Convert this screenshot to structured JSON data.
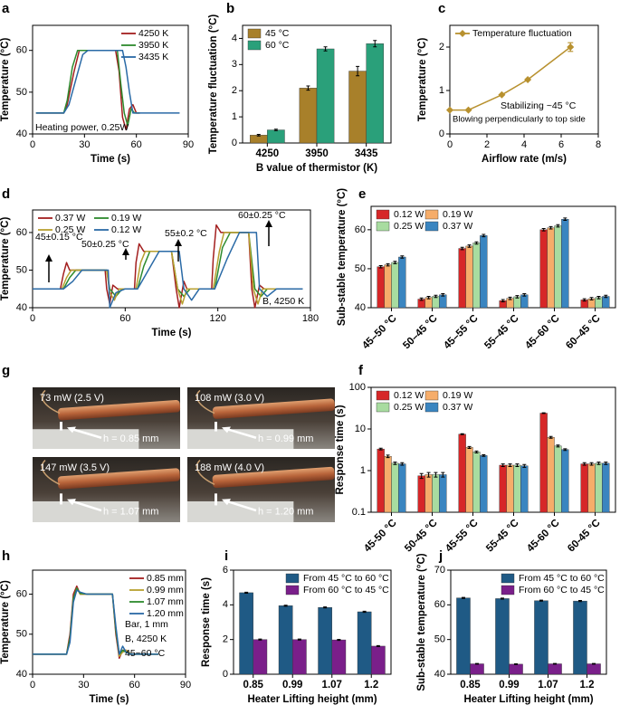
{
  "chart_data": [
    {
      "panel": "a",
      "type": "line",
      "xlabel": "Time (s)",
      "ylabel": "Temperature (°C)",
      "xlim": [
        0,
        90
      ],
      "xticks": [
        0,
        30,
        60,
        90
      ],
      "ylim": [
        40,
        66
      ],
      "yticks": [
        40,
        50,
        60
      ],
      "legend": "upper right",
      "annotations": [
        "Heating power, 0.25W"
      ],
      "series": [
        {
          "name": "4250 K",
          "color": "#a31f1f",
          "x": [
            2,
            10,
            18,
            20,
            24,
            27,
            30,
            40,
            48,
            50,
            52,
            54,
            56,
            58,
            60,
            62
          ],
          "values": [
            45,
            45,
            45,
            47,
            55,
            60,
            60,
            60,
            60,
            55,
            44,
            41,
            46,
            47,
            45,
            45
          ]
        },
        {
          "name": "3950 K",
          "color": "#2e8b2e",
          "x": [
            2,
            10,
            18,
            20,
            23,
            26,
            30,
            40,
            49,
            51,
            53,
            55,
            57,
            59,
            62
          ],
          "values": [
            45,
            45,
            45,
            48,
            56,
            60,
            60,
            60,
            60,
            52,
            45,
            42,
            46,
            45,
            45
          ]
        },
        {
          "name": "3435 K",
          "color": "#2a6aa6",
          "x": [
            2,
            10,
            18,
            21,
            25,
            29,
            32,
            40,
            52,
            54,
            56,
            58,
            62,
            70,
            80,
            85
          ],
          "values": [
            45,
            45,
            45,
            47,
            53,
            59,
            60,
            60,
            60,
            56,
            50,
            45,
            45,
            45,
            45,
            45
          ]
        }
      ]
    },
    {
      "panel": "b",
      "type": "bar",
      "xlabel": "B value of thermistor (K)",
      "ylabel": "Temperature fluctuation (°C)",
      "categories": [
        "4250",
        "3950",
        "3435"
      ],
      "ylim": [
        0,
        4.5
      ],
      "yticks": [
        0,
        1,
        2,
        3,
        4
      ],
      "legend": "upper left",
      "series": [
        {
          "name": "45 °C",
          "color": "#a8802a",
          "values": [
            0.3,
            2.1,
            2.75
          ],
          "errors": [
            0.03,
            0.08,
            0.18
          ]
        },
        {
          "name": "60 °C",
          "color": "#2aa07a",
          "values": [
            0.5,
            3.6,
            3.8
          ],
          "errors": [
            0.03,
            0.08,
            0.12
          ]
        }
      ]
    },
    {
      "panel": "c",
      "type": "line",
      "markers": true,
      "xlabel": "Airflow rate (m/s)",
      "ylabel": "Temperature (°C)",
      "xlim": [
        0,
        8
      ],
      "xticks": [
        0,
        2,
        4,
        6,
        8
      ],
      "ylim": [
        0,
        2.5
      ],
      "yticks": [
        0,
        1,
        2
      ],
      "legend": "upper left",
      "annotations": [
        "Stabilizing ~45 °C",
        "Blowing perpendicularly to top side"
      ],
      "x": [
        0,
        1,
        2.8,
        4.2,
        6.5
      ],
      "series": [
        {
          "name": "Temperature fluctuation",
          "color": "#b8912f",
          "values": [
            0.55,
            0.55,
            0.9,
            1.25,
            2.0
          ],
          "errors": [
            null,
            null,
            null,
            null,
            0.1
          ]
        }
      ]
    },
    {
      "panel": "d",
      "type": "line",
      "xlabel": "Time (s)",
      "ylabel": "Temperature (°C)",
      "xlim": [
        0,
        180
      ],
      "xticks": [
        0,
        60,
        120,
        180
      ],
      "ylim": [
        40,
        66
      ],
      "yticks": [
        40,
        50,
        60
      ],
      "legend": "upper left",
      "annotations": [
        "45±0.15 °C",
        "50±0.25 °C",
        "55±0.2 °C",
        "60±0.25 °C",
        "B, 4250 K"
      ],
      "series": [
        {
          "name": "0.37 W",
          "color": "#a31f1f",
          "x": [
            0,
            18,
            20,
            22,
            24,
            30,
            40,
            47,
            48,
            50,
            52,
            55,
            60,
            66,
            67,
            69,
            72,
            80,
            90,
            93,
            95,
            98,
            100,
            110,
            116,
            117,
            119,
            122,
            130,
            140,
            142,
            144,
            147,
            150,
            165,
            175
          ],
          "values": [
            45,
            45,
            49,
            52,
            50,
            50,
            50,
            50,
            45,
            41,
            46,
            45,
            45,
            45,
            52,
            57,
            55,
            55,
            55,
            45,
            40,
            47,
            45,
            45,
            45,
            53,
            62,
            60,
            60,
            60,
            45,
            40,
            46,
            45,
            45,
            45
          ]
        },
        {
          "name": "0.19 W",
          "color": "#2e8b2e",
          "x": [
            0,
            20,
            24,
            28,
            40,
            48,
            50,
            54,
            58,
            68,
            72,
            76,
            90,
            94,
            98,
            102,
            118,
            123,
            128,
            140,
            144,
            148,
            152,
            175
          ],
          "values": [
            45,
            45,
            48,
            50,
            50,
            50,
            45,
            43,
            45,
            45,
            51,
            55,
            55,
            45,
            43,
            45,
            45,
            56,
            60,
            60,
            45,
            43,
            45,
            45
          ]
        },
        {
          "name": "0.25 W",
          "color": "#b8a030",
          "x": [
            0,
            19,
            22,
            25,
            30,
            40,
            48,
            50,
            53,
            56,
            60,
            67,
            70,
            73,
            80,
            90,
            94,
            97,
            100,
            110,
            117,
            121,
            124,
            130,
            140,
            143,
            146,
            149,
            155,
            175
          ],
          "values": [
            45,
            45,
            48,
            50,
            50,
            50,
            50,
            44,
            42,
            45,
            45,
            45,
            52,
            55,
            55,
            55,
            45,
            41,
            45,
            45,
            45,
            55,
            60,
            60,
            60,
            45,
            41,
            45,
            45,
            45
          ]
        },
        {
          "name": "0.12 W",
          "color": "#2a6aa6",
          "x": [
            0,
            20,
            26,
            32,
            40,
            49,
            50,
            54,
            60,
            68,
            75,
            82,
            95,
            98,
            103,
            108,
            118,
            126,
            134,
            145,
            147,
            152,
            158,
            168,
            175
          ],
          "values": [
            45,
            45,
            47,
            50,
            50,
            50,
            40,
            44,
            45,
            45,
            50,
            55,
            55,
            45,
            42,
            45,
            45,
            53,
            60,
            60,
            45,
            43,
            45,
            45,
            45
          ]
        }
      ]
    },
    {
      "panel": "e",
      "type": "bar",
      "ylabel": "Sub-stable temperature (°C)",
      "categories": [
        "45–50 °C",
        "50–45 °C",
        "45–55 °C",
        "55–45 °C",
        "45–60 °C",
        "60–45 °C"
      ],
      "ylim": [
        40,
        66
      ],
      "yticks": [
        40,
        50,
        60
      ],
      "legend": "upper left",
      "series": [
        {
          "name": "0.12 W",
          "color": "#d62728",
          "values": [
            50.5,
            42.2,
            55.2,
            41.8,
            60.0,
            42.0
          ],
          "errors": [
            0.3,
            0.3,
            0.3,
            0.3,
            0.3,
            0.3
          ]
        },
        {
          "name": "0.19 W",
          "color": "#f6ad6a",
          "values": [
            51.0,
            42.6,
            55.8,
            42.4,
            60.5,
            42.3
          ],
          "errors": [
            0.3,
            0.3,
            0.3,
            0.3,
            0.3,
            0.3
          ]
        },
        {
          "name": "0.25 W",
          "color": "#a8dca0",
          "values": [
            51.6,
            42.9,
            56.6,
            42.8,
            61.0,
            42.6
          ],
          "errors": [
            0.3,
            0.3,
            0.3,
            0.3,
            0.3,
            0.3
          ]
        },
        {
          "name": "0.37 W",
          "color": "#3a85c0",
          "values": [
            53.0,
            43.3,
            58.5,
            43.3,
            62.7,
            42.9
          ],
          "errors": [
            0.3,
            0.3,
            0.3,
            0.3,
            0.3,
            0.3
          ]
        }
      ]
    },
    {
      "panel": "f",
      "type": "bar",
      "log_y": true,
      "ylabel": "Response time (s)",
      "categories": [
        "45-50 °C",
        "50-45 °C",
        "45-55 °C",
        "55-45 °C",
        "45-60 °C",
        "60-45 °C"
      ],
      "ylim": [
        0.1,
        100
      ],
      "yticks": [
        0.1,
        1,
        10,
        100
      ],
      "legend": "upper left",
      "series": [
        {
          "name": "0.12 W",
          "color": "#d62728",
          "values": [
            3.3,
            0.75,
            7.5,
            1.35,
            24,
            1.45
          ],
          "errors": [
            0.15,
            0.1,
            0.2,
            0.1,
            0.5,
            0.1
          ]
        },
        {
          "name": "0.19 W",
          "color": "#f6ad6a",
          "values": [
            2.2,
            0.8,
            3.6,
            1.35,
            6.3,
            1.45
          ],
          "errors": [
            0.15,
            0.1,
            0.2,
            0.1,
            0.3,
            0.1
          ]
        },
        {
          "name": "0.25 W",
          "color": "#a8dca0",
          "values": [
            1.5,
            0.8,
            2.8,
            1.35,
            3.9,
            1.5
          ],
          "errors": [
            0.1,
            0.1,
            0.15,
            0.1,
            0.2,
            0.1
          ]
        },
        {
          "name": "0.37 W",
          "color": "#3a85c0",
          "values": [
            1.45,
            0.8,
            2.3,
            1.3,
            3.2,
            1.5
          ],
          "errors": [
            0.1,
            0.1,
            0.1,
            0.1,
            0.15,
            0.1
          ]
        }
      ]
    },
    {
      "panel": "h",
      "type": "line",
      "xlabel": "Time (s)",
      "ylabel": "Temperature (°C)",
      "xlim": [
        0,
        90
      ],
      "xticks": [
        0,
        30,
        60,
        90
      ],
      "ylim": [
        40,
        66
      ],
      "yticks": [
        40,
        50,
        60
      ],
      "legend": "upper right",
      "annotations": [
        "Bar, 1 mm",
        "B, 4250 K",
        "45~60 °C"
      ],
      "x": [
        0,
        20,
        22,
        24,
        26,
        28,
        32,
        40,
        47,
        49,
        51,
        53,
        55,
        58,
        65,
        74
      ],
      "series": [
        {
          "name": "0.85 mm",
          "color": "#a31f1f",
          "values": [
            45,
            45,
            50,
            60,
            62,
            60,
            60,
            60,
            60,
            50,
            44,
            46,
            46,
            45,
            45,
            45
          ]
        },
        {
          "name": "0.99 mm",
          "color": "#b8a030",
          "values": [
            45,
            45,
            49,
            59,
            61.5,
            60,
            60,
            60,
            60,
            51,
            44.5,
            45.5,
            46,
            45,
            45,
            45
          ]
        },
        {
          "name": "1.07 mm",
          "color": "#2e8b2e",
          "values": [
            45,
            45,
            49,
            59,
            61.5,
            60.2,
            60,
            60,
            60,
            51,
            45,
            46,
            45.5,
            45,
            45,
            45
          ]
        },
        {
          "name": "1.20 mm",
          "color": "#2a6aa6",
          "values": [
            45,
            45,
            48,
            58,
            61,
            60.5,
            60,
            60,
            60,
            52,
            45,
            47,
            45.5,
            45,
            45,
            45
          ]
        }
      ]
    },
    {
      "panel": "i",
      "type": "bar",
      "xlabel": "Heater Lifting height (mm)",
      "ylabel": "Response time (s)",
      "categories": [
        "0.85",
        "0.99",
        "1.07",
        "1.2"
      ],
      "ylim": [
        0,
        6
      ],
      "yticks": [
        0,
        2,
        4,
        6
      ],
      "legend": "upper right",
      "series": [
        {
          "name": "From 45 °C to 60 °C",
          "color": "#1f5a85",
          "values": [
            4.7,
            3.95,
            3.85,
            3.6
          ],
          "errors": [
            0.03,
            0.03,
            0.03,
            0.03
          ]
        },
        {
          "name": "From 60 °C to 45 °C",
          "color": "#7a1f8a",
          "values": [
            2.0,
            2.0,
            1.98,
            1.62
          ],
          "errors": [
            0.03,
            0.03,
            0.03,
            0.03
          ]
        }
      ]
    },
    {
      "panel": "j",
      "type": "bar",
      "xlabel": "Heater Lifting height (mm)",
      "ylabel": "Sub-stable temperature (°C)",
      "categories": [
        "0.85",
        "0.99",
        "1.07",
        "1.2"
      ],
      "ylim": [
        40,
        70
      ],
      "yticks": [
        40,
        50,
        60,
        70
      ],
      "legend": "upper right",
      "series": [
        {
          "name": "From 45 °C to 60 °C",
          "color": "#1f5a85",
          "values": [
            62.0,
            61.8,
            61.2,
            61.1
          ],
          "errors": [
            0.15,
            0.15,
            0.15,
            0.15
          ]
        },
        {
          "name": "From 60 °C to 45 °C",
          "color": "#7a1f8a",
          "values": [
            43.0,
            42.9,
            43.0,
            43.0
          ],
          "errors": [
            0.1,
            0.1,
            0.1,
            0.1
          ]
        }
      ]
    }
  ],
  "photos": {
    "panel": "g",
    "items": [
      {
        "caption": "73 mW (2.5 V)",
        "height": "h = 0.85 mm"
      },
      {
        "caption": "108 mW (3.0 V)",
        "height": "h = 0.99 mm"
      },
      {
        "caption": "147 mW (3.5 V)",
        "height": "h = 1.07 mm"
      },
      {
        "caption": "188 mW (4.0 V)",
        "height": "h = 1.20 mm"
      }
    ]
  }
}
